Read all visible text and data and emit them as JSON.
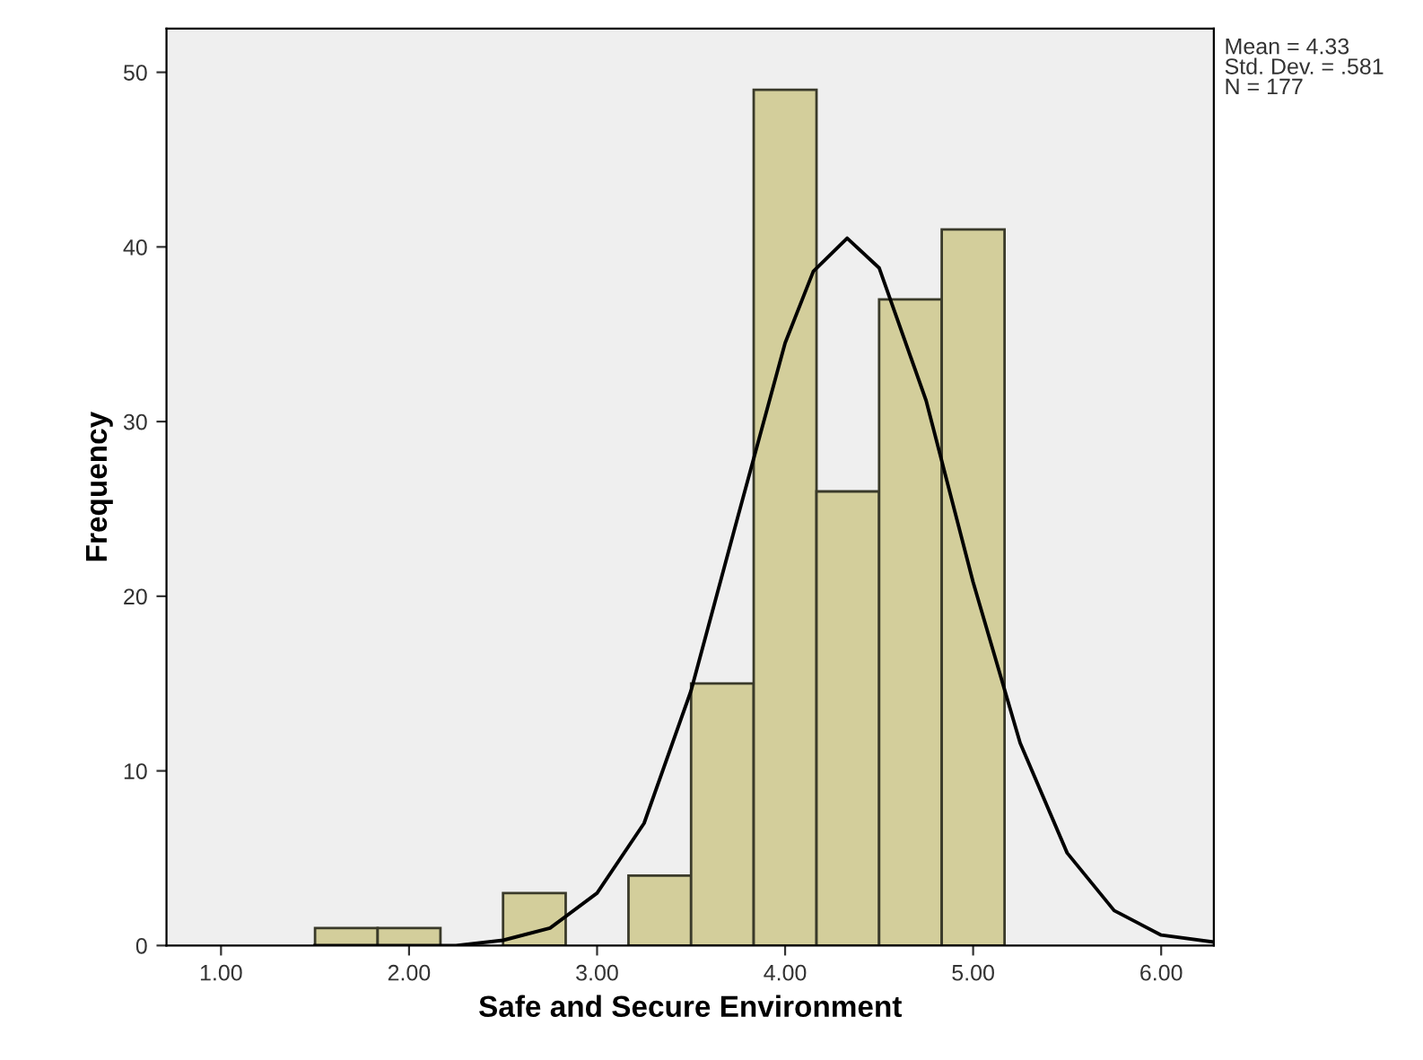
{
  "chart_data": {
    "type": "histogram",
    "xlabel": "Safe and Secure Environment",
    "ylabel": "Frequency",
    "bins": [
      1.5,
      1.833,
      2.167,
      2.5,
      2.833,
      3.167,
      3.5,
      3.833,
      4.167,
      4.5,
      4.833,
      5.167
    ],
    "values": [
      1,
      1,
      0,
      3,
      0,
      4,
      15,
      49,
      26,
      37,
      41
    ],
    "color": "#d3ce9b",
    "series": [
      {
        "type": "line",
        "color": "#000000",
        "x": [
          1.5,
          2.0,
          2.25,
          2.5,
          2.75,
          3.0,
          3.25,
          3.5,
          3.75,
          4.0,
          4.15,
          4.33,
          4.5,
          4.75,
          5.0,
          5.25,
          5.5,
          5.75,
          6.0,
          6.28
        ],
        "values": [
          0,
          0,
          0,
          0.3,
          1,
          3,
          7,
          14.6,
          24.6,
          34.5,
          38.6,
          40.5,
          38.8,
          31.2,
          20.8,
          11.6,
          5.3,
          2,
          0.6,
          0.2
        ]
      }
    ],
    "xlim": [
      0.71,
      6.28
    ],
    "ylim": [
      0,
      52.5
    ],
    "xticks": [
      {
        "value": 1,
        "label": "1.00"
      },
      {
        "value": 2,
        "label": "2.00"
      },
      {
        "value": 3,
        "label": "3.00"
      },
      {
        "value": 4,
        "label": "4.00"
      },
      {
        "value": 5,
        "label": "5.00"
      },
      {
        "value": 6,
        "label": "6.00"
      }
    ],
    "yticks": [
      0,
      10,
      20,
      30,
      40,
      50
    ],
    "annotations": [
      "Mean = 4.33\nStd. Dev. = .581\nN = 177"
    ]
  }
}
